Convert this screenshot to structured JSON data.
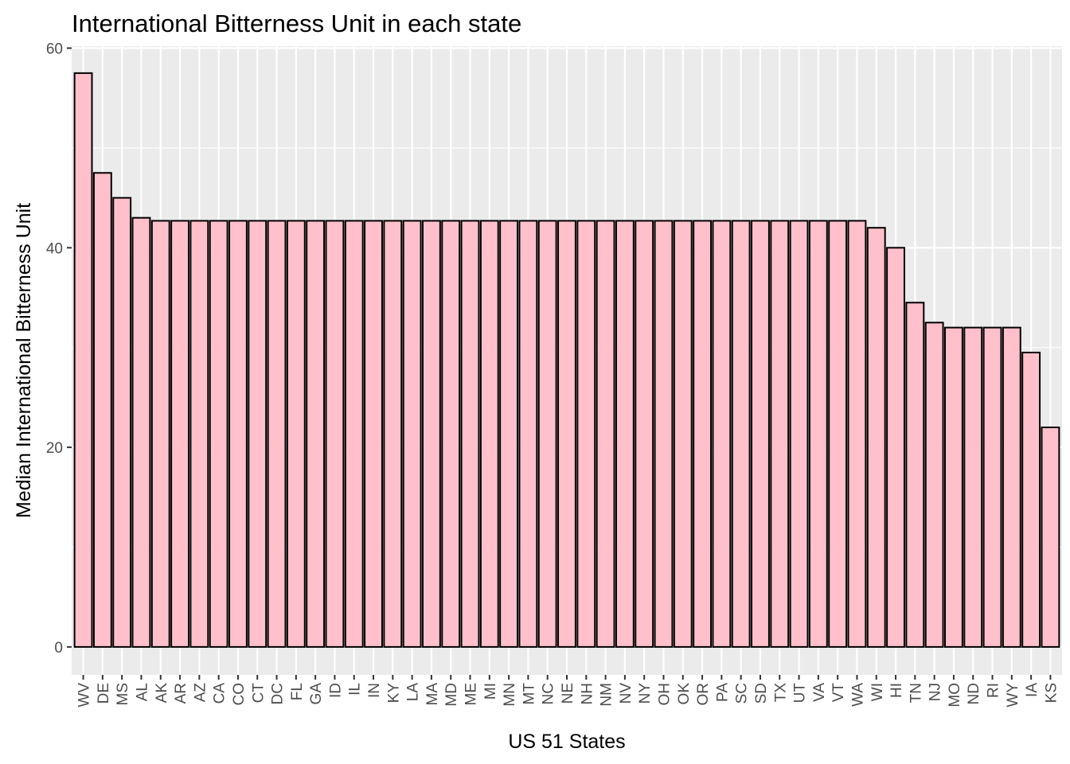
{
  "chart_data": {
    "type": "bar",
    "title": "International Bitterness Unit in each state",
    "xlabel": "US 51 States",
    "ylabel": "Median International Bitterness Unit",
    "ylim": [
      -2.8,
      60.2
    ],
    "yticks": [
      0,
      20,
      40,
      60
    ],
    "grid": true,
    "colors": {
      "panel": "#ebebeb",
      "grid_major": "#ffffff",
      "bar_fill": "#ffc0cb",
      "bar_stroke": "#000000",
      "tick_text": "#4d4d4d"
    },
    "categories": [
      "WV",
      "DE",
      "MS",
      "AL",
      "AK",
      "AR",
      "AZ",
      "CA",
      "CO",
      "CT",
      "DC",
      "FL",
      "GA",
      "ID",
      "IL",
      "IN",
      "KY",
      "LA",
      "MA",
      "MD",
      "ME",
      "MI",
      "MN",
      "MT",
      "NC",
      "NE",
      "NH",
      "NM",
      "NV",
      "NY",
      "OH",
      "OK",
      "OR",
      "PA",
      "SC",
      "SD",
      "TX",
      "UT",
      "VA",
      "VT",
      "WA",
      "WI",
      "HI",
      "TN",
      "NJ",
      "MO",
      "ND",
      "RI",
      "WY",
      "IA",
      "KS"
    ],
    "values": [
      57.5,
      47.5,
      45,
      43,
      42.7,
      42.7,
      42.7,
      42.7,
      42.7,
      42.7,
      42.7,
      42.7,
      42.7,
      42.7,
      42.7,
      42.7,
      42.7,
      42.7,
      42.7,
      42.7,
      42.7,
      42.7,
      42.7,
      42.7,
      42.7,
      42.7,
      42.7,
      42.7,
      42.7,
      42.7,
      42.7,
      42.7,
      42.7,
      42.7,
      42.7,
      42.7,
      42.7,
      42.7,
      42.7,
      42.7,
      42.7,
      42,
      40,
      34.5,
      32.5,
      32,
      32,
      32,
      32,
      29.5,
      22
    ]
  }
}
